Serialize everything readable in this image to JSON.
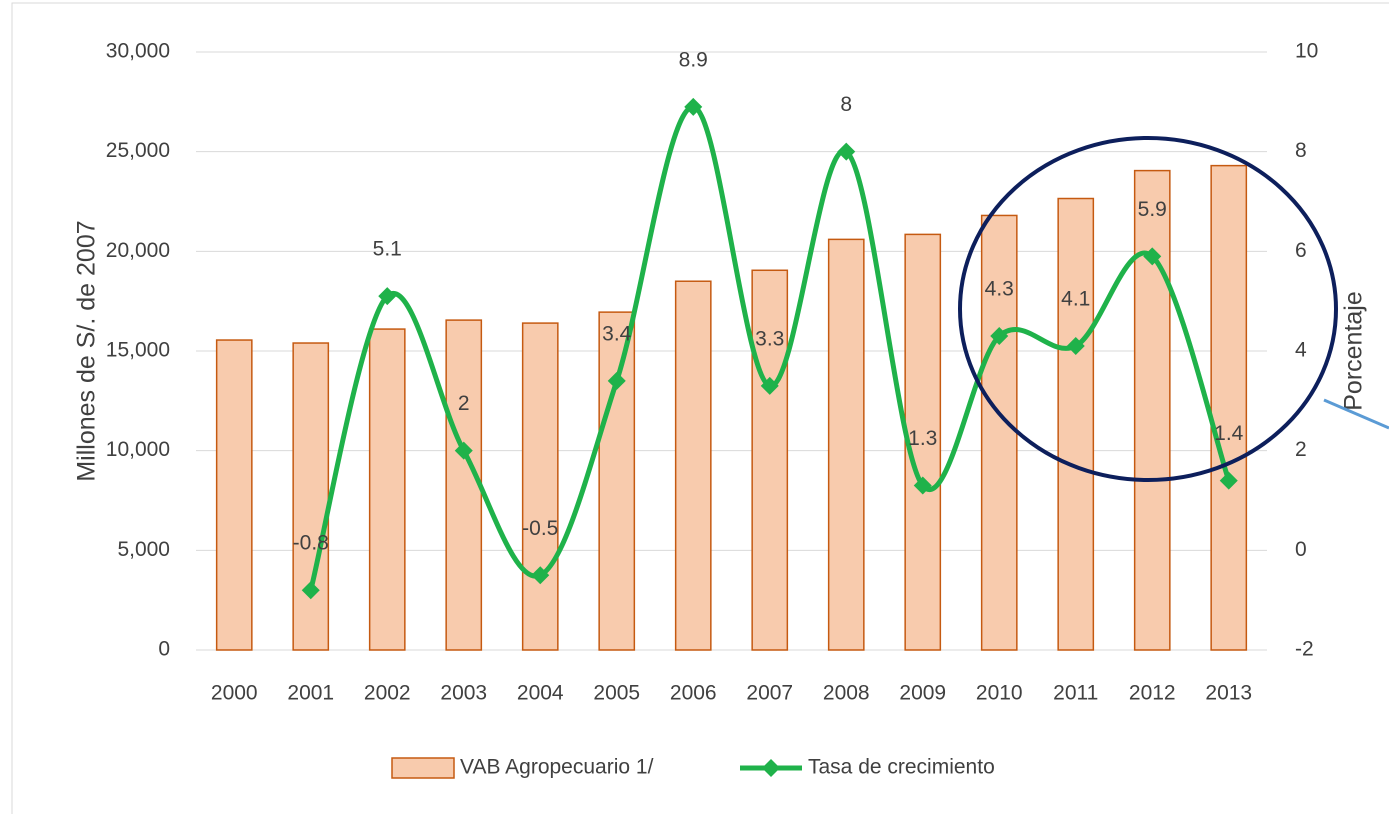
{
  "chart_data": {
    "type": "bar_line",
    "categories": [
      "2000",
      "2001",
      "2002",
      "2003",
      "2004",
      "2005",
      "2006",
      "2007",
      "2008",
      "2009",
      "2010",
      "2011",
      "2012",
      "2013"
    ],
    "series": [
      {
        "name": "VAB Agropecuario 1/",
        "type": "bar",
        "color": "#f8cbad",
        "edgecolor": "#c55a11",
        "values": [
          15550,
          15400,
          16100,
          16550,
          16400,
          16950,
          18500,
          19050,
          20600,
          20850,
          21800,
          22650,
          24050,
          24300
        ]
      },
      {
        "name": "Tasa de crecimiento",
        "type": "line",
        "axis": "y2",
        "color": "#1fb24a",
        "smooth": true,
        "values": [
          null,
          -0.8,
          5.1,
          2.0,
          -0.5,
          3.4,
          8.9,
          3.3,
          8.0,
          1.3,
          4.3,
          4.1,
          5.9,
          1.4
        ]
      }
    ],
    "ylabel": "Millones de S/. de 2007",
    "y2label": "Porcentaje",
    "ylim": [
      0,
      30000
    ],
    "yticks": [
      0,
      {
        "value": 5000,
        "label": "5,000"
      },
      {
        "value": 10000,
        "label": "10,000"
      },
      {
        "value": 15000,
        "label": "15,000"
      },
      {
        "value": 20000,
        "label": "20,000"
      },
      {
        "value": 25000,
        "label": "25,000"
      },
      {
        "value": 30000,
        "label": "30,000"
      }
    ],
    "y2lim": [
      -2,
      10
    ],
    "y2ticks": [
      -2,
      0,
      2,
      4,
      6,
      8,
      10
    ],
    "grid": true,
    "legend": "bottom"
  }
}
